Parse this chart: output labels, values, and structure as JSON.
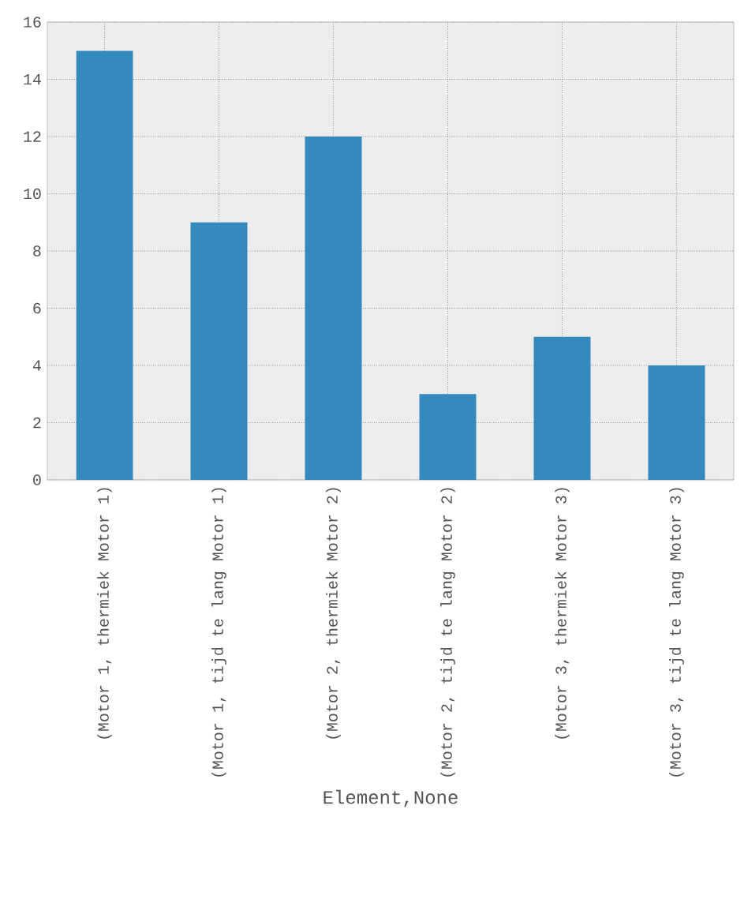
{
  "chart_data": {
    "type": "bar",
    "xlabel": "Element,None",
    "categories": [
      "(Motor 1, thermiek Motor 1)",
      "(Motor 1, tijd te lang Motor 1)",
      "(Motor 2, thermiek Motor 2)",
      "(Motor 2, tijd te lang Motor 2)",
      "(Motor 3, thermiek Motor 3)",
      "(Motor 3, tijd te lang Motor 3)"
    ],
    "values": [
      15,
      9,
      12,
      3,
      5,
      4
    ],
    "color": "#348abd",
    "ylim": [
      0,
      16
    ],
    "yticks": [
      0,
      2,
      4,
      6,
      8,
      10,
      12,
      14,
      16
    ],
    "grid": true
  }
}
